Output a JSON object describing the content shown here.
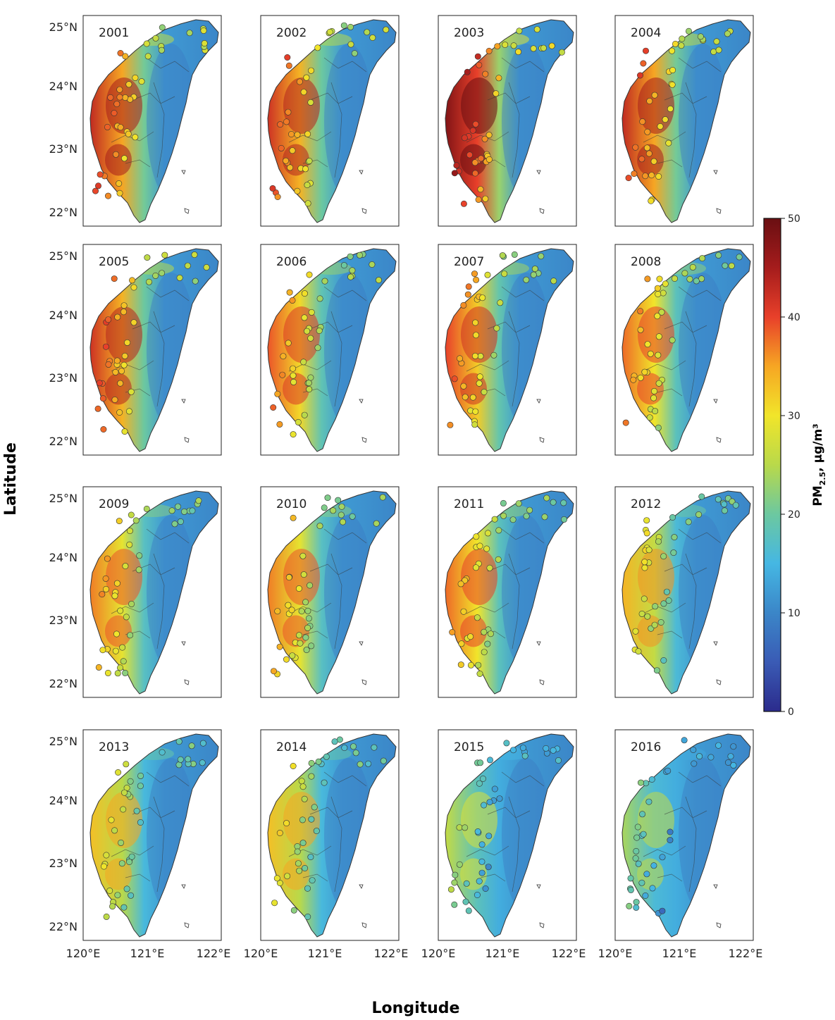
{
  "figure": {
    "y_axis_title": "Latitude",
    "x_axis_title": "Longitude",
    "lat_ticks": [
      "25°N",
      "24°N",
      "23°N",
      "22°N"
    ],
    "lon_ticks": [
      "120°E",
      "121°E",
      "122°E"
    ],
    "colorbar": {
      "label_main": "PM",
      "label_sub": "2.5",
      "label_unit": ", µg/m³",
      "ticks": [
        "0",
        "10",
        "20",
        "30",
        "40",
        "50"
      ],
      "range": [
        0,
        50
      ],
      "colors": [
        "#2b2b8c",
        "#3a5bb5",
        "#3b86c8",
        "#45b7e3",
        "#6cc8a0",
        "#b9d94a",
        "#f1e52a",
        "#f6a623",
        "#e8402a",
        "#a51c1c",
        "#6a0f12"
      ]
    }
  },
  "chart_data": {
    "type": "heatmap",
    "description_units": "PM2.5, µg/m³",
    "panels": [
      {
        "year": "2001",
        "west_level": 41
      },
      {
        "year": "2002",
        "west_level": 40
      },
      {
        "year": "2003",
        "west_level": 46
      },
      {
        "year": "2004",
        "west_level": 41
      },
      {
        "year": "2005",
        "west_level": 40
      },
      {
        "year": "2006",
        "west_level": 37
      },
      {
        "year": "2007",
        "west_level": 38
      },
      {
        "year": "2008",
        "west_level": 36
      },
      {
        "year": "2009",
        "west_level": 35
      },
      {
        "year": "2010",
        "west_level": 35
      },
      {
        "year": "2011",
        "west_level": 36
      },
      {
        "year": "2012",
        "west_level": 32
      },
      {
        "year": "2013",
        "west_level": 31
      },
      {
        "year": "2014",
        "west_level": 31
      },
      {
        "year": "2015",
        "west_level": 24
      },
      {
        "year": "2016",
        "west_level": 22
      }
    ]
  }
}
